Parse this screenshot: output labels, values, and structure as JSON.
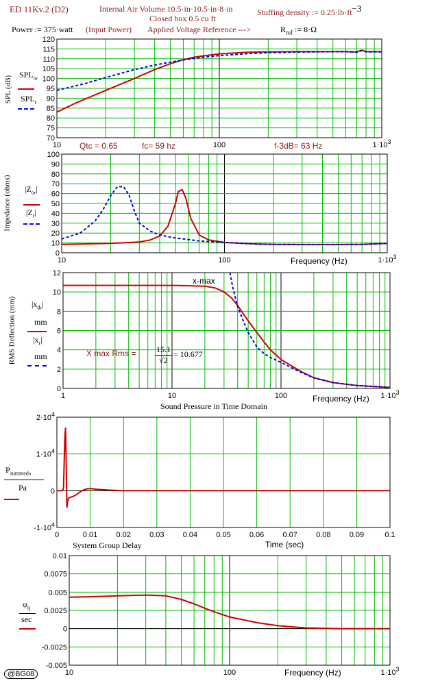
{
  "header": {
    "title": "ED 11Kv.2 (D2)",
    "air_volume": "Internal Air Volume 10.5·in·10.5·in·8·in",
    "box": "Closed box 0.5 cu ft",
    "stuffing": "Stuffing density := 0.25·lb·ft",
    "stuffing_exp": "−3",
    "power": "Power := 375·watt",
    "input_power": "(Input Power)",
    "voltage_ref": "Applied Voltage Reference --->",
    "rref": "R",
    "rref_sub": "ref",
    "rref_val": " := 8·Ω"
  },
  "annotations": {
    "qtc": "Qtc = 0.65",
    "fc": "fc= 59 hz",
    "f3db": "f-3dB= 63 Hz",
    "xmax": "x-max",
    "xmax_rms": "X max Rms =",
    "xmax_num": "15.1",
    "xmax_den": "√2",
    "xmax_val": "= 10.677",
    "sound_pressure": "Sound Pressure in Time Domain",
    "group_delay": "System Group Delay",
    "badge": "@BG08"
  },
  "labels": {
    "spl_axis": "SPL (dB)",
    "spl_or": "SPL",
    "spl_or_sub": "o",
    "spl_or_sub2": "r",
    "spl_r": "SPL",
    "spl_r_sub": "r",
    "imp_axis": "Impedance (ohms)",
    "z_or": "|Z",
    "z_or_sub": "o",
    "z_or_sub2": "r",
    "z_r": "|Z",
    "z_r_sub": "r",
    "defl_axis": "RMS Deflection (mm)",
    "x_dr": "|x",
    "x_dr_sub": "d",
    "x_dr_sub2": "r",
    "x_r": "|x",
    "x_r_sub": "r",
    "mm": "mm",
    "p_num": "P",
    "p_sub": "summed",
    "p_sub2": "n",
    "pa": "Pa",
    "phi": "φ",
    "phi_sub": "q",
    "sec": "sec",
    "freq": "Frequency (Hz)",
    "time": "Time (sec)"
  },
  "colors": {
    "red": "#cc0000",
    "blue": "#0000ee",
    "grid": "#00bb00",
    "text_red": "#8b1a1a"
  },
  "chart_data": [
    {
      "type": "line",
      "xscale": "log",
      "xlim": [
        10,
        1000
      ],
      "ylim": [
        70,
        120
      ],
      "yticks": [
        70,
        75,
        80,
        85,
        90,
        95,
        100,
        105,
        110,
        115,
        120
      ],
      "xtick_labels": [
        "10",
        "100",
        "1·10^3"
      ],
      "ylabel": "SPL (dB)",
      "series": [
        {
          "name": "SPL_o_r",
          "color": "red",
          "dash": false,
          "x": [
            10,
            13,
            20,
            30,
            40,
            50,
            60,
            70,
            80,
            100,
            150,
            200,
            300,
            400,
            500,
            600,
            700,
            750,
            780,
            800,
            900,
            1000
          ],
          "y": [
            83,
            87.5,
            94,
            100,
            104.5,
            107.5,
            109.5,
            110.8,
            111.5,
            112.5,
            113.3,
            113.5,
            113.6,
            113.6,
            113.6,
            113.6,
            113.5,
            114.3,
            114,
            113.6,
            113.6,
            113.6
          ]
        },
        {
          "name": "SPL_r",
          "color": "blue",
          "dash": true,
          "x": [
            10,
            15,
            20,
            30,
            40,
            50,
            60,
            70,
            80,
            100,
            150,
            200,
            300,
            400,
            500,
            600,
            700,
            750,
            780,
            800,
            900,
            1000
          ],
          "y": [
            94,
            97.5,
            100.5,
            104.5,
            106.8,
            108.3,
            109.4,
            110.2,
            110.8,
            111.6,
            112.6,
            113.1,
            113.4,
            113.5,
            113.6,
            113.6,
            113.3,
            114.1,
            113.8,
            113.5,
            113.5,
            113.5
          ]
        }
      ]
    },
    {
      "type": "line",
      "xscale": "log",
      "xlim": [
        10,
        1000
      ],
      "ylim": [
        0,
        100
      ],
      "yticks": [
        0,
        10,
        20,
        30,
        40,
        50,
        60,
        70,
        80,
        90,
        100
      ],
      "xtick_labels": [
        "10",
        "100",
        "1·10^3"
      ],
      "xlabel": "Frequency (Hz)",
      "ylabel": "Impedance (ohms)",
      "series": [
        {
          "name": "Z_o_r",
          "color": "red",
          "dash": false,
          "x": [
            10,
            20,
            30,
            35,
            40,
            45,
            50,
            52,
            55,
            58,
            62,
            70,
            80,
            100,
            150,
            200,
            300,
            500,
            700,
            1000
          ],
          "y": [
            8.5,
            9.5,
            11,
            13,
            17,
            27,
            50,
            62,
            64,
            55,
            35,
            18,
            13,
            10.5,
            9,
            8.5,
            8.3,
            8.3,
            8.5,
            9.5
          ]
        },
        {
          "name": "Z_r",
          "color": "blue",
          "dash": true,
          "x": [
            10,
            13,
            16,
            18,
            20,
            22,
            24,
            26,
            28,
            30,
            35,
            40,
            50,
            70,
            100,
            150,
            200,
            300,
            500,
            700,
            1000
          ],
          "y": [
            14,
            20,
            32,
            44,
            58,
            67,
            67,
            58,
            42,
            30,
            22,
            18,
            15,
            12,
            10.5,
            9,
            8.5,
            8.3,
            8.3,
            8.5,
            9.5
          ]
        }
      ]
    },
    {
      "type": "line",
      "xscale": "log",
      "xlim": [
        1,
        1000
      ],
      "ylim": [
        0,
        12
      ],
      "yticks": [
        0,
        2,
        4,
        6,
        8,
        10,
        12
      ],
      "xtick_labels": [
        "1",
        "10",
        "100",
        "1·10^3"
      ],
      "xlabel": "Frequency (Hz)",
      "ylabel": "RMS Deflection (mm)",
      "series": [
        {
          "name": "x_d_r",
          "color": "red",
          "dash": false,
          "x": [
            1,
            5,
            10,
            20,
            25,
            30,
            35,
            40,
            50,
            60,
            70,
            80,
            100,
            150,
            200,
            300,
            500,
            1000
          ],
          "y": [
            10.68,
            10.68,
            10.68,
            10.6,
            10.4,
            10,
            9.4,
            8.6,
            7,
            5.8,
            4.8,
            4,
            3,
            1.8,
            1.1,
            0.6,
            0.3,
            0.1
          ]
        },
        {
          "name": "x_r",
          "color": "blue",
          "dash": true,
          "x": [
            34,
            36,
            40,
            45,
            50,
            60,
            70,
            80,
            100,
            150,
            200,
            300,
            500,
            1000
          ],
          "y": [
            12,
            10.5,
            8.5,
            7,
            5.8,
            4.3,
            3.6,
            3.2,
            2.7,
            1.7,
            1.1,
            0.6,
            0.3,
            0.1
          ]
        }
      ]
    },
    {
      "type": "line",
      "xscale": "linear",
      "xlim": [
        0,
        0.1
      ],
      "ylim": [
        -10000,
        20000
      ],
      "yticks": [
        -10000,
        0,
        10000,
        20000
      ],
      "ytick_labels": [
        "-1·10^4",
        "0",
        "1·10^4",
        "2·10^4"
      ],
      "xticks": [
        0,
        0.01,
        0.02,
        0.03,
        0.04,
        0.05,
        0.06,
        0.07,
        0.08,
        0.09,
        0.1
      ],
      "xlabel": "Time (sec)",
      "series": [
        {
          "name": "P_summed_n",
          "color": "red",
          "dash": false,
          "x": [
            0,
            0.0015,
            0.0018,
            0.002,
            0.0022,
            0.0024,
            0.0026,
            0.0028,
            0.003,
            0.0032,
            0.0035,
            0.004,
            0.005,
            0.006,
            0.007,
            0.008,
            0.009,
            0.01,
            0.012,
            0.015,
            0.02,
            0.1
          ],
          "y": [
            0,
            0,
            200,
            1000,
            8000,
            15000,
            17000,
            8000,
            -4500,
            -3000,
            -2000,
            -1800,
            -1500,
            -1000,
            -300,
            200,
            500,
            600,
            400,
            200,
            0,
            0
          ]
        }
      ]
    },
    {
      "type": "line",
      "xscale": "log",
      "xlim": [
        10,
        1000
      ],
      "ylim": [
        -0.005,
        0.01
      ],
      "yticks": [
        -0.005,
        -0.0025,
        0,
        0.0025,
        0.005,
        0.0075,
        0.01
      ],
      "xtick_labels": [
        "10",
        "100",
        "1·10^3"
      ],
      "xlabel": "Frequency (Hz)",
      "series": [
        {
          "name": "phi_q",
          "color": "red",
          "dash": false,
          "x": [
            10,
            15,
            20,
            30,
            40,
            50,
            60,
            70,
            80,
            100,
            150,
            200,
            300,
            500,
            700,
            1000
          ],
          "y": [
            0.0043,
            0.0044,
            0.0045,
            0.0046,
            0.0045,
            0.004,
            0.0034,
            0.0028,
            0.0023,
            0.0016,
            0.0008,
            0.0004,
            0.0001,
            0,
            0,
            0
          ]
        }
      ]
    }
  ]
}
